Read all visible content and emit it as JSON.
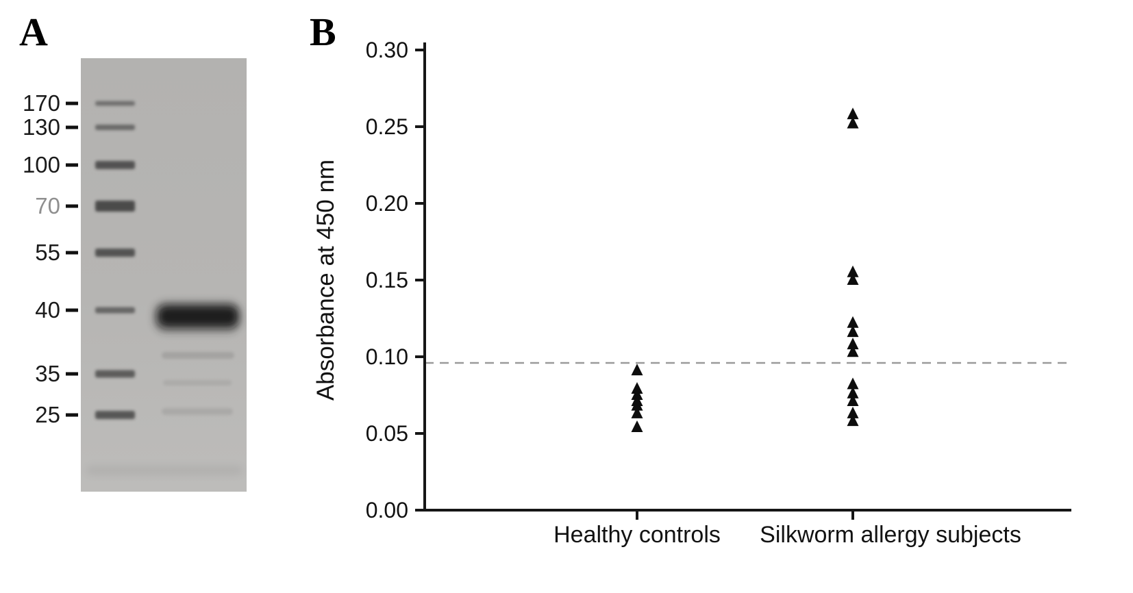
{
  "panels": {
    "a_label": "A",
    "b_label": "B"
  },
  "gel": {
    "ladder_labels": [
      "170",
      "130",
      "100",
      "70",
      "55",
      "40",
      "35",
      "25"
    ],
    "gray_label_index": 3
  },
  "chart_data": {
    "type": "scatter",
    "title": "",
    "xlabel": "",
    "ylabel": "Absorbance at 450 nm",
    "ylim": [
      0,
      0.3
    ],
    "yticks": [
      0,
      0.05,
      0.1,
      0.15,
      0.2,
      0.25,
      0.3
    ],
    "ytick_labels": [
      "0.00",
      "0.05",
      "0.10",
      "0.15",
      "0.20",
      "0.25",
      "0.30"
    ],
    "marker": "triangle",
    "grid": false,
    "legend": "none",
    "cutoff": 0.096,
    "groups": [
      {
        "label": "Healthy controls",
        "values": [
          0.091,
          0.079,
          0.075,
          0.071,
          0.068,
          0.063,
          0.054
        ]
      },
      {
        "label": "Silkworm allergy subjects",
        "values": [
          0.258,
          0.252,
          0.155,
          0.15,
          0.122,
          0.116,
          0.108,
          0.103,
          0.082,
          0.076,
          0.071,
          0.063,
          0.058
        ]
      }
    ]
  },
  "colors": {
    "marker": "#0d0d0d",
    "axis": "#161616",
    "cutoff_line": "#9a9a9a",
    "gel_bg_top": "#b3b2b0",
    "gel_bg_bottom": "#bdbcba",
    "band": "#2e2e2e"
  }
}
